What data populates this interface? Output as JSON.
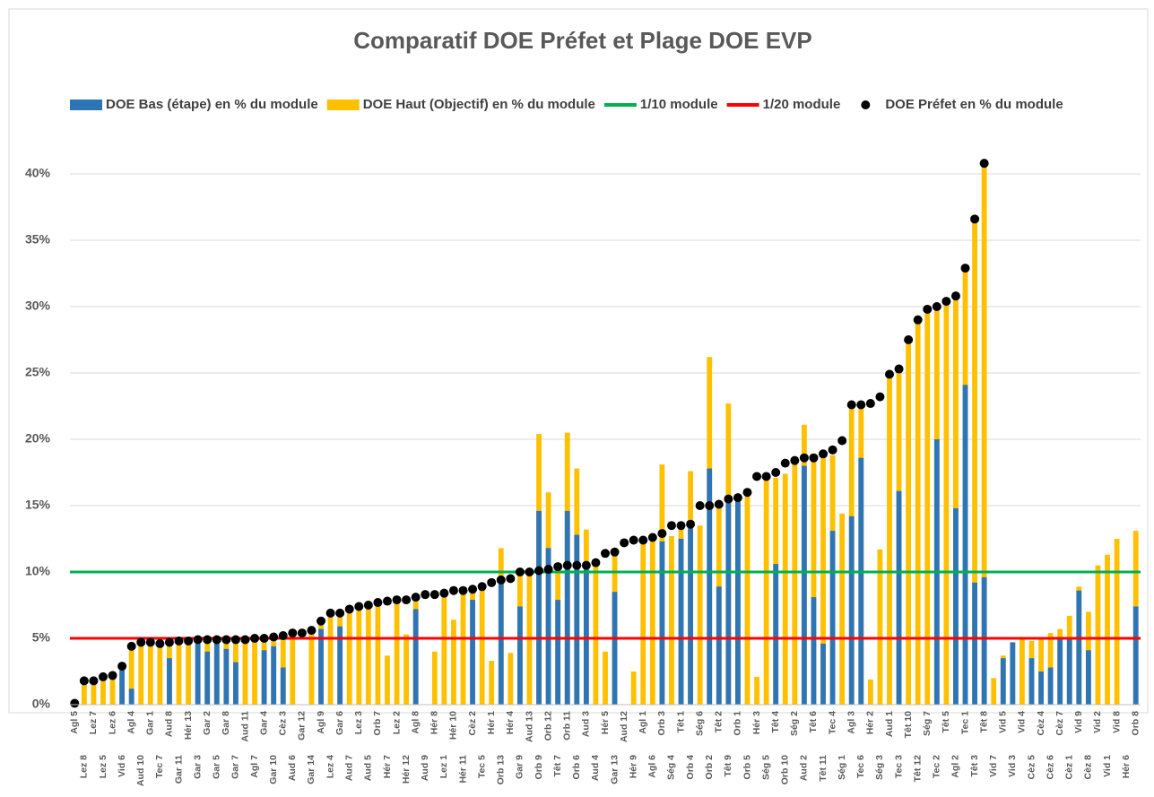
{
  "chart_data": {
    "type": "combo",
    "title": "Comparatif DOE Préfet et Plage DOE EVP",
    "categories": [
      "Agl 5",
      "Lez 8",
      "Lez 7",
      "Lez 5",
      "Lez 6",
      "Vid 6",
      "Agl 4",
      "Aud 10",
      "Gar 1",
      "Tec 7",
      "Aud 8",
      "Gar 11",
      "Hér 13",
      "Gar 3",
      "Gar 2",
      "Gar 5",
      "Gar 8",
      "Gar 7",
      "Aud 11",
      "Agl 7",
      "Gar 4",
      "Gar 10",
      "Cèz 3",
      "Aud 6",
      "Gar 12",
      "Gar 14",
      "Agl 9",
      "Lez 4",
      "Gar 6",
      "Aud 7",
      "Lez 3",
      "Aud 5",
      "Orb 7",
      "Hér 7",
      "Lez 2",
      "Hér 12",
      "Agl 8",
      "Aud 9",
      "Hér 8",
      "Lez 1",
      "Hér 10",
      "Hér 11",
      "Cèz 2",
      "Tec 5",
      "Hér 1",
      "Orb 13",
      "Hér 4",
      "Gar 9",
      "Aud 13",
      "Orb 9",
      "Orb 12",
      "Têt 7",
      "Orb 11",
      "Orb 6",
      "Aud 3",
      "Aud 4",
      "Hér 5",
      "Gar 13",
      "Aud 12",
      "Hér 9",
      "Agl 1",
      "Agl 6",
      "Orb 3",
      "Ség 4",
      "Têt 1",
      "Orb 4",
      "Ség 6",
      "Orb 2",
      "Têt 2",
      "Têt 9",
      "Orb 1",
      "Orb 5",
      "Hér 3",
      "Ség 5",
      "Têt 4",
      "Orb 10",
      "Ség 2",
      "Aud 2",
      "Têt 6",
      "Têt 11",
      "Tec 4",
      "Ség 1",
      "Agl 3",
      "Tec 6",
      "Hér 2",
      "Ség 3",
      "Aud 1",
      "Tec 3",
      "Têt 10",
      "Têt 12",
      "Ség 7",
      "Tec 2",
      "Têt 5",
      "Agl 2",
      "Tec 1",
      "Têt 3",
      "Têt 8",
      "Vid 7",
      "Vid 5",
      "Vid 3",
      "Vid 4",
      "Cèz 5",
      "Cèz 4",
      "Cèz 6",
      "Cèz 7",
      "Cèz 1",
      "Vid 9",
      "Cèz 8",
      "Vid 2",
      "Vid 1",
      "Vid 8",
      "Hér 6",
      "Orb 8"
    ],
    "series": [
      {
        "name": "DOE Haut (Objectif) en % du module",
        "kind": "bar",
        "color": "#ffc000",
        "values": [
          0,
          1.6,
          1.7,
          2.0,
          2.1,
          2.6,
          4.2,
          4.6,
          4.6,
          4.5,
          4.7,
          4.6,
          4.8,
          4.8,
          4.9,
          4.9,
          4.9,
          4.9,
          4.9,
          4.9,
          5.0,
          4.9,
          5.0,
          5.2,
          0,
          5.5,
          6.0,
          6.9,
          6.8,
          7.1,
          7.3,
          7.4,
          7.6,
          3.7,
          7.9,
          5.3,
          8.0,
          0,
          4.0,
          8.3,
          6.4,
          8.5,
          8.7,
          8.6,
          3.3,
          11.8,
          3.9,
          9.8,
          10.0,
          20.4,
          16.0,
          10.3,
          20.5,
          17.8,
          13.2,
          10.5,
          4.0,
          11.3,
          0,
          2.5,
          12.2,
          12.4,
          18.1,
          12.7,
          13.4,
          17.6,
          13.5,
          26.2,
          15.0,
          22.7,
          15.6,
          15.8,
          2.1,
          17.0,
          17.1,
          17.4,
          18.1,
          21.1,
          18.5,
          18.6,
          18.8,
          14.4,
          22.4,
          22.6,
          1.9,
          11.7,
          24.8,
          25.3,
          27.4,
          28.8,
          29.8,
          30.0,
          30.4,
          30.7,
          32.8,
          36.5,
          40.6,
          2.0,
          3.7,
          4.7,
          4.9,
          4.8,
          5.0,
          5.4,
          5.7,
          6.7,
          8.9,
          7.0,
          10.5,
          11.3,
          12.5,
          0,
          13.1
        ]
      },
      {
        "name": "DOE Bas (étape) en % du module",
        "kind": "bar",
        "color": "#2e75b6",
        "values": [
          null,
          null,
          null,
          null,
          null,
          2.6,
          1.2,
          null,
          null,
          null,
          3.5,
          null,
          null,
          4.6,
          4.0,
          4.7,
          4.2,
          3.2,
          null,
          null,
          4.1,
          4.4,
          2.8,
          null,
          null,
          null,
          5.7,
          null,
          5.9,
          null,
          null,
          null,
          null,
          null,
          null,
          null,
          7.2,
          null,
          null,
          null,
          null,
          null,
          7.9,
          null,
          null,
          9.2,
          null,
          7.4,
          null,
          14.6,
          11.8,
          7.9,
          14.6,
          12.8,
          10.4,
          null,
          null,
          8.5,
          null,
          null,
          null,
          null,
          12.3,
          null,
          12.5,
          13.3,
          null,
          17.8,
          8.9,
          15.3,
          15.3,
          null,
          null,
          null,
          10.6,
          null,
          null,
          18.0,
          8.1,
          4.6,
          13.1,
          null,
          14.2,
          18.6,
          null,
          null,
          null,
          16.1,
          null,
          null,
          null,
          20.0,
          null,
          14.8,
          24.1,
          9.2,
          9.6,
          null,
          3.5,
          4.7,
          null,
          3.5,
          2.5,
          2.8,
          4.9,
          5.1,
          8.6,
          4.1,
          null,
          null,
          null,
          null,
          7.4
        ]
      },
      {
        "name": "1/10 module",
        "kind": "hline",
        "color": "#00b050",
        "value": 10
      },
      {
        "name": "1/20 module",
        "kind": "hline",
        "color": "#ff0000",
        "value": 5
      },
      {
        "name": "DOE Préfet en % du module",
        "kind": "dot",
        "color": "#000000",
        "values": [
          0.1,
          1.8,
          1.8,
          2.1,
          2.2,
          2.9,
          4.4,
          4.7,
          4.7,
          4.6,
          4.7,
          4.8,
          4.8,
          4.9,
          4.9,
          4.9,
          4.9,
          4.9,
          4.9,
          5.0,
          5.0,
          5.1,
          5.2,
          5.4,
          5.4,
          5.6,
          6.3,
          6.9,
          6.9,
          7.2,
          7.4,
          7.5,
          7.7,
          7.8,
          7.9,
          7.9,
          8.1,
          8.3,
          8.3,
          8.4,
          8.6,
          8.6,
          8.7,
          8.9,
          9.2,
          9.4,
          9.5,
          10.0,
          10.0,
          10.1,
          10.2,
          10.4,
          10.5,
          10.5,
          10.5,
          10.7,
          11.4,
          11.5,
          12.2,
          12.4,
          12.4,
          12.6,
          12.9,
          13.5,
          13.5,
          13.6,
          15.0,
          15.0,
          15.1,
          15.5,
          15.6,
          16.0,
          17.2,
          17.2,
          17.5,
          18.2,
          18.4,
          18.6,
          18.6,
          18.9,
          19.2,
          19.9,
          22.6,
          22.6,
          22.7,
          23.2,
          24.9,
          25.3,
          27.5,
          29.0,
          29.8,
          30.0,
          30.4,
          30.8,
          32.9,
          36.6,
          40.8,
          null,
          null,
          null,
          null,
          null,
          null,
          null,
          null,
          null,
          null,
          null,
          null,
          null,
          null,
          null,
          null
        ]
      }
    ],
    "legend_order": [
      1,
      0,
      2,
      3,
      4
    ],
    "ylim": [
      0,
      40
    ],
    "yticks": [
      {
        "value": 0,
        "label": "0%"
      },
      {
        "value": 5,
        "label": "5%"
      },
      {
        "value": 10,
        "label": "10%"
      },
      {
        "value": 15,
        "label": "15%"
      },
      {
        "value": 20,
        "label": "20%"
      },
      {
        "value": 25,
        "label": "25%"
      },
      {
        "value": 30,
        "label": "30%"
      },
      {
        "value": 35,
        "label": "35%"
      },
      {
        "value": 40,
        "label": "40%"
      }
    ],
    "grid": true
  }
}
